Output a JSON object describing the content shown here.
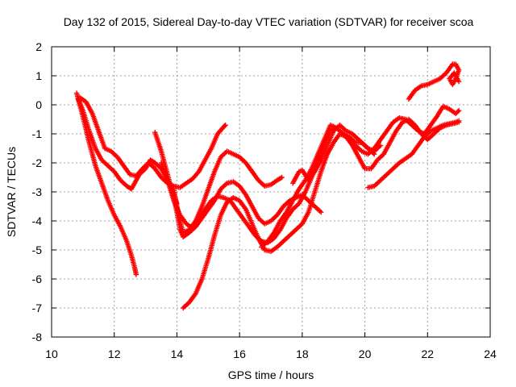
{
  "chart_data": {
    "type": "scatter",
    "title": "Day 132 of 2015, Sidereal Day-to-day VTEC variation (SDTVAR) for receiver scoa",
    "xlabel": "GPS time / hours",
    "ylabel": "SDTVAR / TECUs",
    "xlim": [
      10,
      24
    ],
    "ylim": [
      -8,
      2
    ],
    "xticks": [
      10,
      12,
      14,
      16,
      18,
      20,
      22,
      24
    ],
    "yticks": [
      -8,
      -7,
      -6,
      -5,
      -4,
      -3,
      -2,
      -1,
      0,
      1,
      2
    ],
    "grid": true,
    "marker": "plus",
    "color": "#ff0000",
    "series": [
      {
        "points": [
          [
            10.8,
            0.4
          ],
          [
            11.0,
            -0.4
          ],
          [
            11.2,
            -1.3
          ],
          [
            11.4,
            -2.1
          ],
          [
            11.6,
            -2.7
          ],
          [
            11.8,
            -3.3
          ],
          [
            12.0,
            -3.8
          ],
          [
            12.2,
            -4.2
          ],
          [
            12.4,
            -4.7
          ],
          [
            12.55,
            -5.2
          ],
          [
            12.65,
            -5.6
          ],
          [
            12.7,
            -5.85
          ]
        ]
      },
      {
        "points": [
          [
            10.85,
            0.2
          ],
          [
            11.0,
            -0.2
          ],
          [
            11.2,
            -0.9
          ],
          [
            11.4,
            -1.5
          ],
          [
            11.6,
            -1.9
          ],
          [
            11.8,
            -2.1
          ],
          [
            12.0,
            -2.3
          ],
          [
            12.2,
            -2.6
          ],
          [
            12.4,
            -2.8
          ],
          [
            12.55,
            -2.9
          ],
          [
            12.65,
            -2.7
          ],
          [
            12.8,
            -2.4
          ],
          [
            13.0,
            -2.2
          ],
          [
            13.15,
            -1.9
          ],
          [
            13.3,
            -2.0
          ],
          [
            13.5,
            -2.2
          ],
          [
            13.7,
            -2.6
          ],
          [
            13.9,
            -3.1
          ],
          [
            14.0,
            -3.4
          ]
        ]
      },
      {
        "points": [
          [
            10.9,
            0.25
          ],
          [
            11.1,
            0.1
          ],
          [
            11.3,
            -0.3
          ],
          [
            11.5,
            -0.9
          ],
          [
            11.7,
            -1.5
          ],
          [
            11.9,
            -1.6
          ],
          [
            12.1,
            -1.8
          ],
          [
            12.3,
            -2.1
          ],
          [
            12.5,
            -2.4
          ],
          [
            12.7,
            -2.45
          ],
          [
            12.9,
            -2.2
          ],
          [
            13.1,
            -2.0
          ],
          [
            13.3,
            -2.2
          ],
          [
            13.5,
            -2.5
          ],
          [
            13.7,
            -2.7
          ],
          [
            13.9,
            -2.8
          ],
          [
            14.1,
            -2.85
          ],
          [
            14.3,
            -2.7
          ],
          [
            14.5,
            -2.55
          ],
          [
            14.7,
            -2.3
          ],
          [
            14.9,
            -1.9
          ],
          [
            15.1,
            -1.5
          ],
          [
            15.3,
            -1.0
          ],
          [
            15.5,
            -0.75
          ],
          [
            15.55,
            -0.7
          ]
        ]
      },
      {
        "points": [
          [
            13.3,
            -0.95
          ],
          [
            13.5,
            -1.6
          ],
          [
            13.7,
            -2.4
          ],
          [
            13.9,
            -3.2
          ],
          [
            14.0,
            -3.7
          ],
          [
            14.1,
            -4.3
          ],
          [
            14.2,
            -4.55
          ],
          [
            14.4,
            -4.4
          ],
          [
            14.6,
            -4.2
          ],
          [
            14.8,
            -3.9
          ],
          [
            15.0,
            -3.6
          ],
          [
            15.2,
            -3.3
          ],
          [
            15.4,
            -2.9
          ],
          [
            15.6,
            -2.7
          ],
          [
            15.8,
            -2.65
          ],
          [
            16.0,
            -2.8
          ],
          [
            16.2,
            -3.1
          ],
          [
            16.4,
            -3.5
          ],
          [
            16.6,
            -3.9
          ],
          [
            16.8,
            -4.1
          ],
          [
            17.0,
            -4.0
          ],
          [
            17.2,
            -3.8
          ],
          [
            17.4,
            -3.5
          ],
          [
            17.6,
            -3.3
          ],
          [
            17.8,
            -3.2
          ],
          [
            18.0,
            -3.1
          ],
          [
            18.2,
            -3.3
          ],
          [
            18.4,
            -3.5
          ],
          [
            18.6,
            -3.7
          ]
        ]
      },
      {
        "points": [
          [
            13.5,
            -2.0
          ],
          [
            13.7,
            -2.6
          ],
          [
            13.9,
            -3.3
          ],
          [
            14.1,
            -3.8
          ],
          [
            14.3,
            -4.1
          ],
          [
            14.5,
            -4.25
          ],
          [
            14.7,
            -4.0
          ],
          [
            14.9,
            -3.6
          ],
          [
            15.1,
            -3.3
          ],
          [
            15.3,
            -3.15
          ],
          [
            15.5,
            -3.2
          ],
          [
            15.7,
            -3.3
          ],
          [
            15.9,
            -3.6
          ],
          [
            16.1,
            -3.9
          ],
          [
            16.3,
            -4.2
          ],
          [
            16.5,
            -4.5
          ],
          [
            16.7,
            -4.7
          ],
          [
            16.9,
            -4.75
          ],
          [
            17.1,
            -4.6
          ],
          [
            17.3,
            -4.3
          ],
          [
            17.5,
            -3.9
          ],
          [
            17.7,
            -3.6
          ],
          [
            17.9,
            -3.4
          ],
          [
            18.1,
            -3.0
          ],
          [
            18.3,
            -2.5
          ],
          [
            18.5,
            -2.0
          ],
          [
            18.7,
            -1.4
          ],
          [
            18.9,
            -0.9
          ],
          [
            19.1,
            -0.8
          ],
          [
            19.3,
            -1.0
          ],
          [
            19.5,
            -1.2
          ],
          [
            19.7,
            -1.4
          ],
          [
            19.9,
            -1.6
          ],
          [
            20.1,
            -1.7
          ],
          [
            20.3,
            -1.5
          ],
          [
            20.5,
            -1.2
          ],
          [
            20.7,
            -0.9
          ],
          [
            20.9,
            -0.6
          ],
          [
            21.1,
            -0.45
          ],
          [
            21.3,
            -0.5
          ],
          [
            21.5,
            -0.7
          ],
          [
            21.7,
            -0.9
          ],
          [
            21.9,
            -1.0
          ],
          [
            22.1,
            -0.7
          ],
          [
            22.3,
            -0.4
          ],
          [
            22.5,
            -0.05
          ],
          [
            22.7,
            -0.15
          ],
          [
            22.9,
            -0.3
          ],
          [
            23.0,
            -0.2
          ]
        ]
      },
      {
        "points": [
          [
            14.2,
            -7.0
          ],
          [
            14.4,
            -6.8
          ],
          [
            14.6,
            -6.5
          ],
          [
            14.8,
            -6.0
          ],
          [
            15.0,
            -5.3
          ],
          [
            15.2,
            -4.5
          ],
          [
            15.4,
            -3.8
          ],
          [
            15.6,
            -3.35
          ],
          [
            15.8,
            -3.2
          ],
          [
            16.0,
            -3.3
          ],
          [
            16.2,
            -3.6
          ],
          [
            16.4,
            -4.1
          ],
          [
            16.6,
            -4.6
          ],
          [
            16.8,
            -5.0
          ],
          [
            17.0,
            -5.05
          ],
          [
            17.2,
            -4.9
          ],
          [
            17.4,
            -4.7
          ],
          [
            17.6,
            -4.5
          ],
          [
            17.8,
            -4.3
          ],
          [
            18.0,
            -4.1
          ],
          [
            18.2,
            -3.7
          ],
          [
            18.4,
            -3.0
          ],
          [
            18.6,
            -2.3
          ],
          [
            18.8,
            -1.7
          ],
          [
            19.0,
            -1.3
          ],
          [
            19.2,
            -1.0
          ],
          [
            19.4,
            -1.1
          ],
          [
            19.6,
            -1.4
          ],
          [
            19.8,
            -1.8
          ],
          [
            20.0,
            -2.2
          ],
          [
            20.2,
            -2.2
          ],
          [
            20.4,
            -1.9
          ],
          [
            20.6,
            -1.7
          ],
          [
            20.8,
            -1.3
          ],
          [
            21.0,
            -0.9
          ],
          [
            21.2,
            -0.6
          ],
          [
            21.4,
            -0.5
          ],
          [
            21.6,
            -0.7
          ],
          [
            21.8,
            -1.0
          ],
          [
            22.0,
            -1.2
          ],
          [
            22.2,
            -1.0
          ],
          [
            22.4,
            -0.8
          ],
          [
            22.6,
            -0.7
          ],
          [
            22.8,
            -0.65
          ],
          [
            23.0,
            -0.6
          ]
        ]
      },
      {
        "points": [
          [
            13.9,
            -2.9
          ],
          [
            14.0,
            -3.5
          ],
          [
            14.1,
            -4.0
          ],
          [
            14.2,
            -4.4
          ],
          [
            14.4,
            -4.3
          ],
          [
            14.6,
            -4.0
          ],
          [
            14.8,
            -3.5
          ],
          [
            15.0,
            -2.9
          ],
          [
            15.2,
            -2.3
          ],
          [
            15.4,
            -1.8
          ],
          [
            15.6,
            -1.6
          ],
          [
            15.8,
            -1.7
          ],
          [
            16.0,
            -1.8
          ],
          [
            16.2,
            -2.0
          ],
          [
            16.4,
            -2.3
          ],
          [
            16.6,
            -2.6
          ],
          [
            16.8,
            -2.8
          ],
          [
            17.0,
            -2.75
          ],
          [
            17.2,
            -2.6
          ],
          [
            17.35,
            -2.5
          ]
        ]
      },
      {
        "points": [
          [
            16.7,
            -4.9
          ],
          [
            16.9,
            -4.7
          ],
          [
            17.1,
            -4.4
          ],
          [
            17.3,
            -4.0
          ],
          [
            17.5,
            -3.7
          ],
          [
            17.7,
            -3.3
          ],
          [
            17.9,
            -2.9
          ],
          [
            18.1,
            -2.6
          ],
          [
            18.3,
            -2.2
          ],
          [
            18.5,
            -1.7
          ],
          [
            18.7,
            -1.2
          ],
          [
            18.9,
            -0.7
          ],
          [
            19.1,
            -0.8
          ],
          [
            19.3,
            -1.0
          ],
          [
            19.5,
            -1.1
          ],
          [
            19.7,
            -1.3
          ],
          [
            19.9,
            -1.3
          ],
          [
            20.1,
            -1.5
          ],
          [
            20.3,
            -1.6
          ],
          [
            20.5,
            -1.4
          ]
        ]
      },
      {
        "points": [
          [
            17.7,
            -2.7
          ],
          [
            17.9,
            -2.3
          ],
          [
            18.0,
            -2.25
          ],
          [
            18.2,
            -2.6
          ],
          [
            18.4,
            -2.3
          ],
          [
            18.6,
            -1.9
          ],
          [
            18.8,
            -1.4
          ],
          [
            19.0,
            -0.9
          ],
          [
            19.2,
            -0.7
          ],
          [
            19.4,
            -0.9
          ],
          [
            19.6,
            -1.0
          ],
          [
            19.8,
            -1.2
          ],
          [
            20.0,
            -1.4
          ],
          [
            20.2,
            -1.6
          ],
          [
            20.3,
            -1.7
          ]
        ]
      },
      {
        "points": [
          [
            20.1,
            -2.85
          ],
          [
            20.3,
            -2.8
          ],
          [
            20.5,
            -2.6
          ],
          [
            20.7,
            -2.4
          ],
          [
            20.9,
            -2.2
          ],
          [
            21.1,
            -2.0
          ],
          [
            21.3,
            -1.85
          ],
          [
            21.5,
            -1.7
          ],
          [
            21.7,
            -1.4
          ],
          [
            21.9,
            -1.1
          ],
          [
            22.1,
            -0.9
          ],
          [
            22.3,
            -0.8
          ],
          [
            22.5,
            -0.7
          ],
          [
            22.7,
            -0.65
          ],
          [
            22.9,
            -0.6
          ],
          [
            23.0,
            -0.55
          ]
        ]
      },
      {
        "points": [
          [
            21.4,
            0.2
          ],
          [
            21.6,
            0.5
          ],
          [
            21.8,
            0.65
          ],
          [
            22.0,
            0.7
          ],
          [
            22.2,
            0.8
          ],
          [
            22.4,
            0.9
          ],
          [
            22.6,
            1.1
          ],
          [
            22.8,
            1.4
          ],
          [
            22.9,
            1.4
          ],
          [
            23.0,
            1.2
          ],
          [
            22.9,
            0.9
          ],
          [
            22.8,
            0.7
          ],
          [
            22.7,
            0.9
          ],
          [
            22.85,
            1.1
          ],
          [
            23.0,
            0.8
          ]
        ]
      }
    ]
  }
}
